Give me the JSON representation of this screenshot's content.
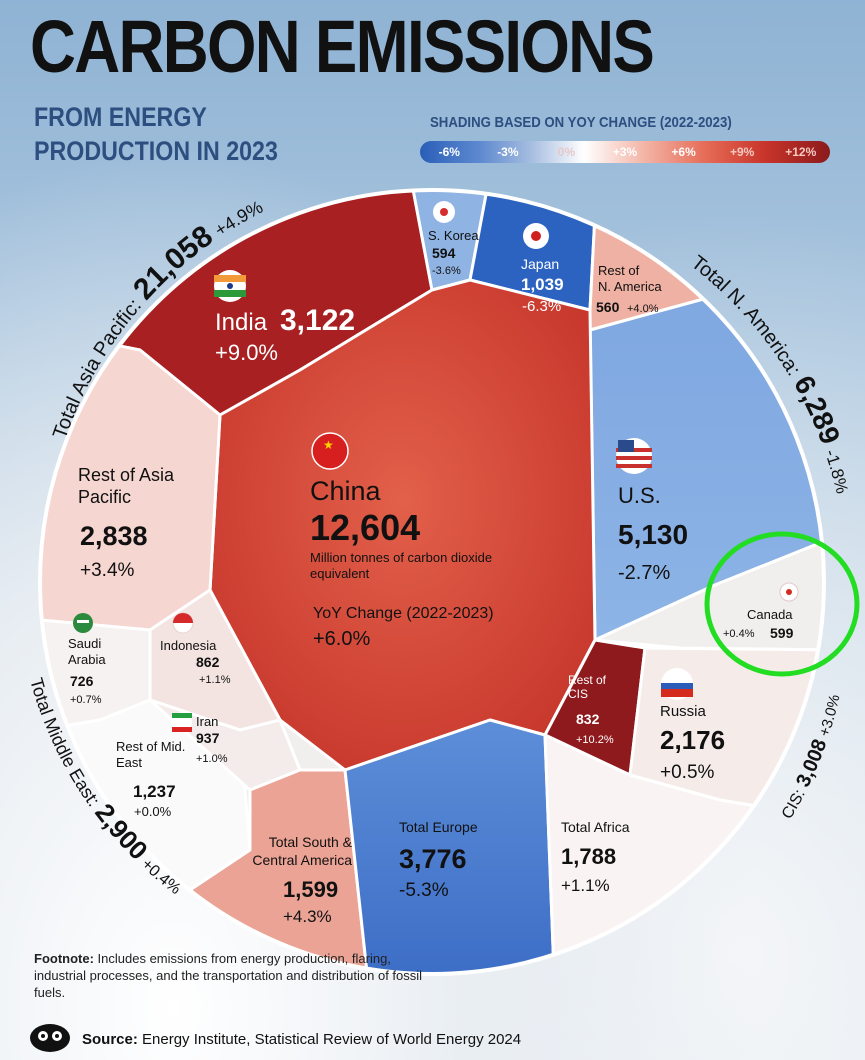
{
  "header": {
    "title": "CARBON EMISSIONS",
    "subtitle": "FROM ENERGY PRODUCTION IN 2023"
  },
  "legend": {
    "title": "SHADING BASED ON YOY CHANGE (2022-2023)",
    "ticks": [
      "-6%",
      "-3%",
      "0%",
      "+3%",
      "+6%",
      "+9%",
      "+12%"
    ]
  },
  "colors": {
    "title": "#111111",
    "subtitle": "#2d4f80",
    "strong_increase": "#a82022",
    "increase": "#d9513f",
    "slight_increase": "#efc5bb",
    "neutral": "#f7f3f1",
    "decrease": "#5f8fd6",
    "strong_decrease": "#2c63c1",
    "highlight_circle": "#22dd22"
  },
  "chart_data": {
    "type": "voronoi-treemap",
    "title": "CARBON EMISSIONS",
    "subtitle": "FROM ENERGY PRODUCTION IN 2023",
    "unit": "Million tonnes of carbon dioxide equivalent",
    "regions": [
      {
        "name": "Total Asia Pacific:",
        "value": "21,058",
        "change": "+4.9%"
      },
      {
        "name": "Total N. America:",
        "value": "6,289",
        "change": "-1.8%"
      },
      {
        "name": "CIS:",
        "value": "3,008",
        "change": "+3.0%"
      },
      {
        "name": "Total Middle East:",
        "value": "2,900",
        "change": "+0.4%"
      }
    ],
    "cells": [
      {
        "name": "China",
        "value": "12,604",
        "change": "+6.0%",
        "note": "Million tonnes of carbon dioxide equivalent",
        "yoy_label": "YoY Change (2022-2023)"
      },
      {
        "name": "India",
        "value": "3,122",
        "change": "+9.0%"
      },
      {
        "name": "S. Korea",
        "value": "594",
        "change": "-3.6%"
      },
      {
        "name": "Japan",
        "value": "1,039",
        "change": "-6.3%"
      },
      {
        "name": "Rest of N. America",
        "value": "560",
        "change": "+4.0%"
      },
      {
        "name": "Rest of Asia Pacific",
        "value": "2,838",
        "change": "+3.4%"
      },
      {
        "name": "U.S.",
        "value": "5,130",
        "change": "-2.7%"
      },
      {
        "name": "Canada",
        "value": "599",
        "change": "+0.4%"
      },
      {
        "name": "Saudi Arabia",
        "value": "726",
        "change": "+0.7%"
      },
      {
        "name": "Indonesia",
        "value": "862",
        "change": "+1.1%"
      },
      {
        "name": "Iran",
        "value": "937",
        "change": "+1.0%"
      },
      {
        "name": "Rest of Mid. East",
        "value": "1,237",
        "change": "+0.0%"
      },
      {
        "name": "Rest of CIS",
        "value": "832",
        "change": "+10.2%"
      },
      {
        "name": "Russia",
        "value": "2,176",
        "change": "+0.5%"
      },
      {
        "name": "Total South & Central America",
        "value": "1,599",
        "change": "+4.3%"
      },
      {
        "name": "Total Europe",
        "value": "3,776",
        "change": "-5.3%"
      },
      {
        "name": "Total Africa",
        "value": "1,788",
        "change": "+1.1%"
      }
    ]
  },
  "footnote": {
    "label": "Footnote:",
    "text": "Includes emissions from energy production, flaring, industrial processes, and the transportation and distribution of fossil fuels."
  },
  "source": {
    "label": "Source:",
    "text": "Energy Institute, Statistical Review of World Energy 2024"
  }
}
